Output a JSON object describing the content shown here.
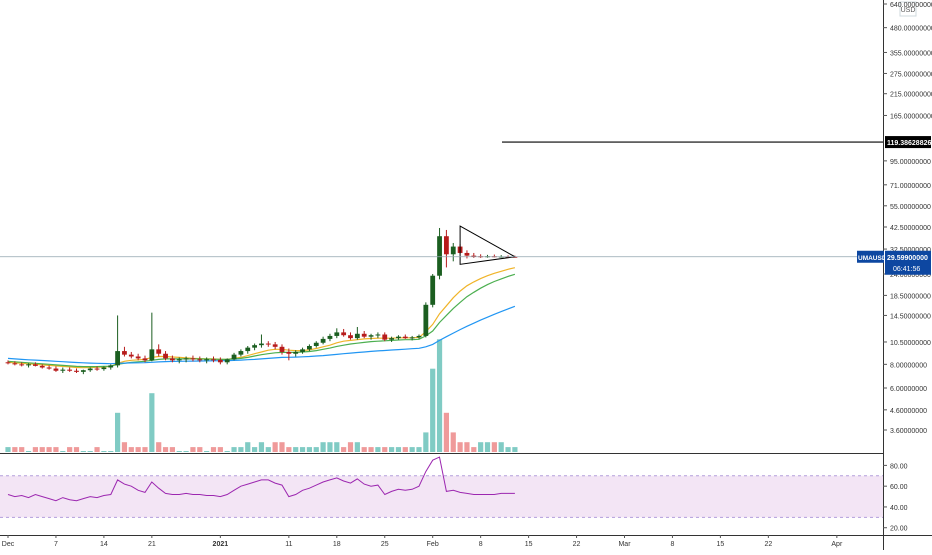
{
  "chart_data": {
    "type": "candlestick",
    "symbol": "UMAUSD",
    "currency": "USD",
    "colors": {
      "up": "#1b5e20",
      "down": "#b71c1c",
      "volume_up": "#80cbc4",
      "volume_down": "#ef9a9a",
      "ma_fast": "#f0b429",
      "ma_mid": "#4caf50",
      "ma_slow": "#2196f3",
      "rsi_line": "#9c27b0",
      "rsi_band": "#f3e5f5",
      "price_tag": "#0d47a1",
      "hline": "#000000"
    },
    "price_scale": {
      "type": "log",
      "ticks": [
        "640.00000000",
        "480.00000000",
        "355.00000000",
        "275.00000000",
        "215.00000000",
        "165.00000000",
        "95.00000000",
        "71.00000000",
        "55.00000000",
        "42.50000000",
        "32.50000000",
        "24.00000000",
        "18.50000000",
        "14.50000000",
        "10.50000000",
        "8.00000000",
        "6.00000000",
        "4.60000000",
        "3.60000000"
      ],
      "tick_values": [
        640,
        480,
        355,
        275,
        215,
        165,
        95,
        71,
        55,
        42.5,
        32.5,
        24,
        18.5,
        14.5,
        10.5,
        8,
        6,
        4.6,
        3.6
      ],
      "horizontal_line_label": "119.38628826",
      "horizontal_line_value": 119.38628826,
      "last_price_label": "29.59900000",
      "last_price_value": 29.599,
      "countdown": "06:41:56"
    },
    "rsi_scale": {
      "ticks": [
        "80.00",
        "60.00",
        "40.00",
        "20.00"
      ],
      "tick_values": [
        80,
        60,
        40,
        20
      ],
      "band": [
        30,
        70
      ]
    },
    "time_axis": {
      "labels": [
        "Dec",
        "7",
        "14",
        "21",
        "2021",
        "11",
        "18",
        "25",
        "Feb",
        "8",
        "15",
        "22",
        "Mar",
        "8",
        "15",
        "22",
        "Apr"
      ],
      "label_bar_index": [
        0,
        7,
        14,
        21,
        31,
        41,
        48,
        55,
        62,
        69,
        76,
        83,
        90,
        97,
        104,
        111,
        121
      ]
    },
    "candles": [
      [
        8.2,
        8.4,
        8.0,
        8.1
      ],
      [
        8.1,
        8.3,
        7.9,
        8.0
      ],
      [
        8.0,
        8.2,
        7.8,
        7.9
      ],
      [
        7.9,
        8.1,
        7.7,
        8.0
      ],
      [
        8.0,
        8.2,
        7.8,
        7.85
      ],
      [
        7.85,
        8.0,
        7.6,
        7.7
      ],
      [
        7.7,
        7.9,
        7.5,
        7.6
      ],
      [
        7.6,
        7.8,
        7.3,
        7.4
      ],
      [
        7.4,
        7.7,
        7.2,
        7.5
      ],
      [
        7.5,
        7.7,
        7.3,
        7.4
      ],
      [
        7.4,
        7.6,
        7.2,
        7.3
      ],
      [
        7.3,
        7.5,
        7.1,
        7.45
      ],
      [
        7.45,
        7.7,
        7.3,
        7.6
      ],
      [
        7.6,
        7.8,
        7.4,
        7.55
      ],
      [
        7.55,
        7.8,
        7.4,
        7.7
      ],
      [
        7.7,
        8.0,
        7.5,
        7.9
      ],
      [
        7.9,
        14.5,
        7.7,
        9.4
      ],
      [
        9.4,
        9.9,
        8.8,
        9.0
      ],
      [
        9.0,
        9.3,
        8.6,
        8.8
      ],
      [
        8.8,
        9.1,
        8.4,
        8.6
      ],
      [
        8.6,
        8.9,
        8.2,
        8.4
      ],
      [
        8.4,
        15.0,
        8.3,
        9.6
      ],
      [
        9.6,
        10.2,
        8.8,
        9.1
      ],
      [
        9.1,
        9.4,
        8.4,
        8.6
      ],
      [
        8.6,
        8.9,
        8.2,
        8.4
      ],
      [
        8.4,
        8.7,
        8.1,
        8.5
      ],
      [
        8.5,
        8.8,
        8.2,
        8.6
      ],
      [
        8.6,
        8.9,
        8.3,
        8.5
      ],
      [
        8.5,
        8.8,
        8.2,
        8.4
      ],
      [
        8.4,
        8.7,
        8.1,
        8.5
      ],
      [
        8.5,
        8.8,
        8.2,
        8.45
      ],
      [
        8.45,
        8.7,
        8.0,
        8.2
      ],
      [
        8.2,
        8.6,
        8.0,
        8.5
      ],
      [
        8.5,
        9.2,
        8.4,
        9.0
      ],
      [
        9.0,
        9.6,
        8.8,
        9.4
      ],
      [
        9.4,
        10.0,
        9.1,
        9.8
      ],
      [
        9.8,
        10.3,
        9.5,
        10.1
      ],
      [
        10.1,
        11.5,
        9.8,
        10.3
      ],
      [
        10.3,
        10.6,
        9.9,
        10.2
      ],
      [
        10.2,
        10.5,
        9.6,
        9.9
      ],
      [
        9.9,
        10.2,
        9.0,
        9.3
      ],
      [
        9.3,
        9.7,
        8.4,
        9.1
      ],
      [
        9.1,
        9.5,
        8.8,
        9.3
      ],
      [
        9.3,
        9.8,
        9.1,
        9.6
      ],
      [
        9.6,
        10.2,
        9.4,
        10.0
      ],
      [
        10.0,
        10.6,
        9.8,
        10.4
      ],
      [
        10.4,
        11.2,
        10.2,
        10.9
      ],
      [
        10.9,
        11.6,
        10.6,
        11.3
      ],
      [
        11.3,
        12.4,
        11.0,
        11.8
      ],
      [
        11.8,
        12.3,
        11.2,
        11.4
      ],
      [
        11.4,
        11.8,
        10.8,
        11.0
      ],
      [
        11.0,
        12.6,
        10.8,
        11.6
      ],
      [
        11.6,
        12.0,
        11.0,
        11.2
      ],
      [
        11.2,
        11.6,
        10.8,
        11.4
      ],
      [
        11.4,
        11.8,
        11.0,
        11.5
      ],
      [
        11.5,
        11.8,
        10.6,
        10.8
      ],
      [
        10.8,
        11.2,
        10.5,
        11.0
      ],
      [
        11.0,
        11.4,
        10.8,
        11.2
      ],
      [
        11.2,
        11.5,
        10.9,
        11.0
      ],
      [
        11.0,
        11.3,
        10.7,
        11.1
      ],
      [
        11.1,
        11.5,
        10.9,
        11.3
      ],
      [
        11.3,
        17.0,
        11.1,
        16.5
      ],
      [
        16.5,
        24.0,
        16.0,
        23.5
      ],
      [
        23.5,
        42.0,
        22.5,
        38.0
      ],
      [
        38.0,
        41.0,
        26.0,
        30.5
      ],
      [
        30.5,
        35.0,
        28.0,
        33.5
      ],
      [
        33.5,
        34.5,
        30.5,
        31.0
      ],
      [
        31.0,
        32.0,
        29.0,
        30.0
      ],
      [
        30.0,
        31.0,
        29.2,
        29.8
      ],
      [
        29.8,
        30.5,
        29.2,
        29.7
      ],
      [
        29.7,
        30.3,
        29.3,
        29.8
      ],
      [
        29.8,
        30.4,
        29.4,
        29.6
      ],
      [
        29.6,
        30.2,
        29.3,
        29.7
      ],
      [
        29.7,
        30.1,
        29.4,
        29.6
      ],
      [
        29.6,
        30.0,
        29.4,
        29.599
      ]
    ],
    "volume": [
      [
        1,
        1
      ],
      [
        1,
        0
      ],
      [
        1,
        0
      ],
      [
        0,
        1
      ],
      [
        1,
        0
      ],
      [
        1,
        0
      ],
      [
        1,
        0
      ],
      [
        1,
        0
      ],
      [
        0,
        1
      ],
      [
        1,
        0
      ],
      [
        1,
        0
      ],
      [
        0,
        1
      ],
      [
        0,
        1
      ],
      [
        1,
        0
      ],
      [
        0,
        1
      ],
      [
        0,
        1
      ],
      [
        8,
        1
      ],
      [
        2,
        0
      ],
      [
        1,
        0
      ],
      [
        1,
        0
      ],
      [
        1,
        0
      ],
      [
        12,
        1
      ],
      [
        2,
        0
      ],
      [
        1,
        0
      ],
      [
        1,
        0
      ],
      [
        0,
        1
      ],
      [
        0,
        1
      ],
      [
        1,
        0
      ],
      [
        1,
        0
      ],
      [
        0,
        1
      ],
      [
        1,
        0
      ],
      [
        1,
        0
      ],
      [
        0,
        1
      ],
      [
        1,
        1
      ],
      [
        1,
        1
      ],
      [
        2,
        1
      ],
      [
        1,
        1
      ],
      [
        2,
        1
      ],
      [
        1,
        1
      ],
      [
        2,
        0
      ],
      [
        2,
        0
      ],
      [
        1,
        0
      ],
      [
        1,
        1
      ],
      [
        1,
        1
      ],
      [
        1,
        1
      ],
      [
        1,
        1
      ],
      [
        2,
        1
      ],
      [
        2,
        1
      ],
      [
        2,
        1
      ],
      [
        1,
        0
      ],
      [
        2,
        0
      ],
      [
        2,
        1
      ],
      [
        1,
        0
      ],
      [
        1,
        0
      ],
      [
        1,
        1
      ],
      [
        1,
        0
      ],
      [
        1,
        1
      ],
      [
        1,
        1
      ],
      [
        1,
        0
      ],
      [
        1,
        1
      ],
      [
        1,
        1
      ],
      [
        4,
        1
      ],
      [
        17,
        1
      ],
      [
        23,
        1
      ],
      [
        8,
        0
      ],
      [
        4,
        0
      ],
      [
        2,
        0
      ],
      [
        2,
        0
      ],
      [
        1,
        0
      ],
      [
        2,
        1
      ],
      [
        2,
        1
      ],
      [
        2,
        0
      ],
      [
        2,
        1
      ],
      [
        1,
        1
      ],
      [
        1,
        1
      ]
    ],
    "moving_averages": [
      {
        "name": "MA fast",
        "values": [
          8.2,
          8.15,
          8.1,
          8.05,
          8.0,
          7.95,
          7.9,
          7.85,
          7.8,
          7.75,
          7.7,
          7.68,
          7.7,
          7.72,
          7.75,
          7.8,
          8.1,
          8.3,
          8.4,
          8.45,
          8.5,
          8.7,
          8.8,
          8.8,
          8.75,
          8.7,
          8.65,
          8.6,
          8.58,
          8.55,
          8.55,
          8.5,
          8.5,
          8.6,
          8.7,
          8.9,
          9.1,
          9.3,
          9.5,
          9.6,
          9.6,
          9.5,
          9.45,
          9.45,
          9.55,
          9.7,
          9.9,
          10.1,
          10.4,
          10.6,
          10.7,
          10.8,
          10.9,
          10.95,
          11.0,
          11.0,
          11.0,
          11.05,
          11.05,
          11.05,
          11.1,
          11.9,
          13.0,
          14.8,
          16.3,
          18.0,
          19.5,
          20.8,
          21.8,
          22.7,
          23.5,
          24.2,
          24.8,
          25.4,
          25.9
        ]
      },
      {
        "name": "MA mid",
        "values": [
          8.3,
          8.25,
          8.2,
          8.15,
          8.1,
          8.05,
          8.0,
          7.95,
          7.9,
          7.85,
          7.8,
          7.78,
          7.78,
          7.78,
          7.8,
          7.82,
          8.0,
          8.1,
          8.2,
          8.25,
          8.3,
          8.4,
          8.5,
          8.55,
          8.55,
          8.55,
          8.55,
          8.55,
          8.55,
          8.53,
          8.52,
          8.5,
          8.5,
          8.55,
          8.6,
          8.7,
          8.85,
          9.0,
          9.1,
          9.2,
          9.25,
          9.25,
          9.25,
          9.3,
          9.35,
          9.45,
          9.6,
          9.75,
          9.95,
          10.1,
          10.25,
          10.35,
          10.45,
          10.55,
          10.6,
          10.65,
          10.7,
          10.75,
          10.8,
          10.8,
          10.85,
          11.3,
          12.0,
          13.3,
          14.5,
          15.8,
          17.0,
          18.2,
          19.2,
          20.2,
          21.1,
          21.9,
          22.6,
          23.3,
          23.9
        ]
      },
      {
        "name": "MA slow",
        "values": [
          8.6,
          8.55,
          8.5,
          8.45,
          8.42,
          8.38,
          8.34,
          8.3,
          8.26,
          8.22,
          8.18,
          8.15,
          8.12,
          8.1,
          8.08,
          8.06,
          8.1,
          8.12,
          8.14,
          8.15,
          8.16,
          8.2,
          8.24,
          8.27,
          8.29,
          8.3,
          8.31,
          8.32,
          8.33,
          8.34,
          8.35,
          8.36,
          8.37,
          8.39,
          8.42,
          8.46,
          8.5,
          8.55,
          8.6,
          8.65,
          8.7,
          8.72,
          8.74,
          8.77,
          8.8,
          8.85,
          8.9,
          8.96,
          9.03,
          9.1,
          9.17,
          9.24,
          9.3,
          9.36,
          9.42,
          9.47,
          9.52,
          9.57,
          9.62,
          9.67,
          9.72,
          9.9,
          10.2,
          10.7,
          11.2,
          11.7,
          12.2,
          12.7,
          13.2,
          13.7,
          14.2,
          14.7,
          15.2,
          15.7,
          16.2
        ]
      }
    ],
    "rsi": [
      52,
      50,
      51,
      49,
      52,
      50,
      48,
      46,
      49,
      47,
      46,
      48,
      50,
      49,
      51,
      52,
      66,
      62,
      60,
      56,
      54,
      64,
      58,
      53,
      52,
      52,
      53,
      52,
      52,
      51,
      51,
      50,
      52,
      56,
      60,
      62,
      64,
      66,
      66,
      63,
      61,
      50,
      52,
      56,
      58,
      61,
      64,
      66,
      68,
      65,
      63,
      67,
      62,
      60,
      61,
      52,
      55,
      57,
      56,
      57,
      60,
      74,
      85,
      88,
      55,
      56,
      54,
      53,
      52,
      52,
      52,
      52,
      53,
      53,
      53
    ],
    "annotations": {
      "triangle": {
        "apex_bar": 74,
        "apex_value": 29.6,
        "upper_bar": 66,
        "upper_value": 43.0,
        "lower_bar": 66,
        "lower_value": 27.0
      }
    }
  }
}
